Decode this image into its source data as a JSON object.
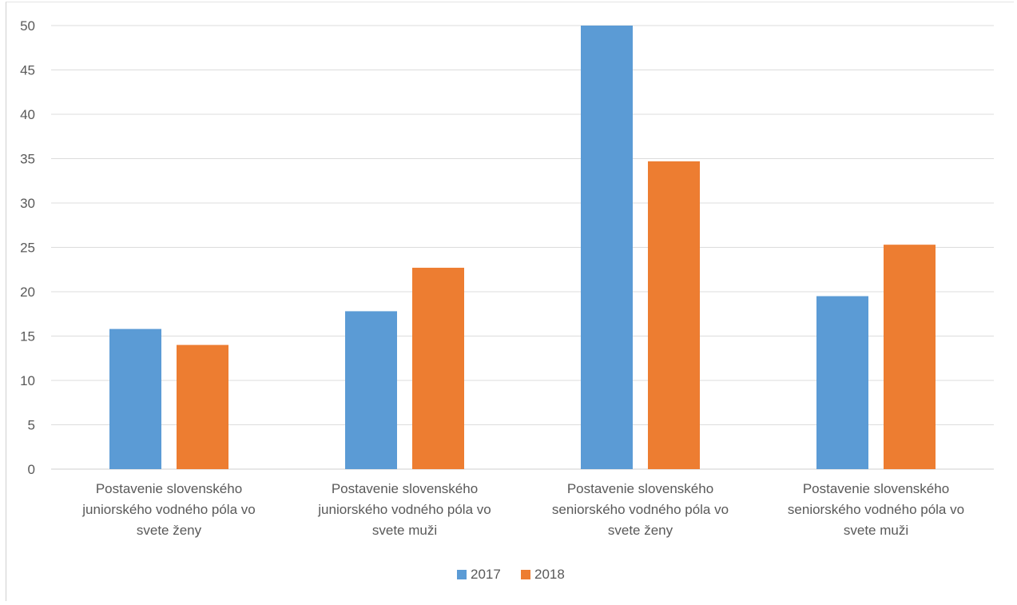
{
  "chart_data": {
    "type": "bar",
    "categories": [
      [
        "Postavenie slovenského",
        "juniorského vodného póla vo",
        "svete ženy"
      ],
      [
        "Postavenie slovenského",
        "juniorského vodného póla vo",
        "svete muži"
      ],
      [
        "Postavenie slovenského",
        "seniorského vodného póla vo",
        "svete ženy"
      ],
      [
        "Postavenie slovenského",
        "seniorského vodného póla vo",
        "svete muži"
      ]
    ],
    "series": [
      {
        "name": "2017",
        "color": "#5B9BD5",
        "values": [
          15.8,
          17.8,
          50,
          19.5
        ]
      },
      {
        "name": "2018",
        "color": "#ED7D31",
        "values": [
          14,
          22.7,
          34.7,
          25.3
        ]
      }
    ],
    "ylim": [
      0,
      50
    ],
    "yticks": [
      0,
      5,
      10,
      15,
      20,
      25,
      30,
      35,
      40,
      45,
      50
    ],
    "grid": true,
    "legend_position": "bottom"
  }
}
